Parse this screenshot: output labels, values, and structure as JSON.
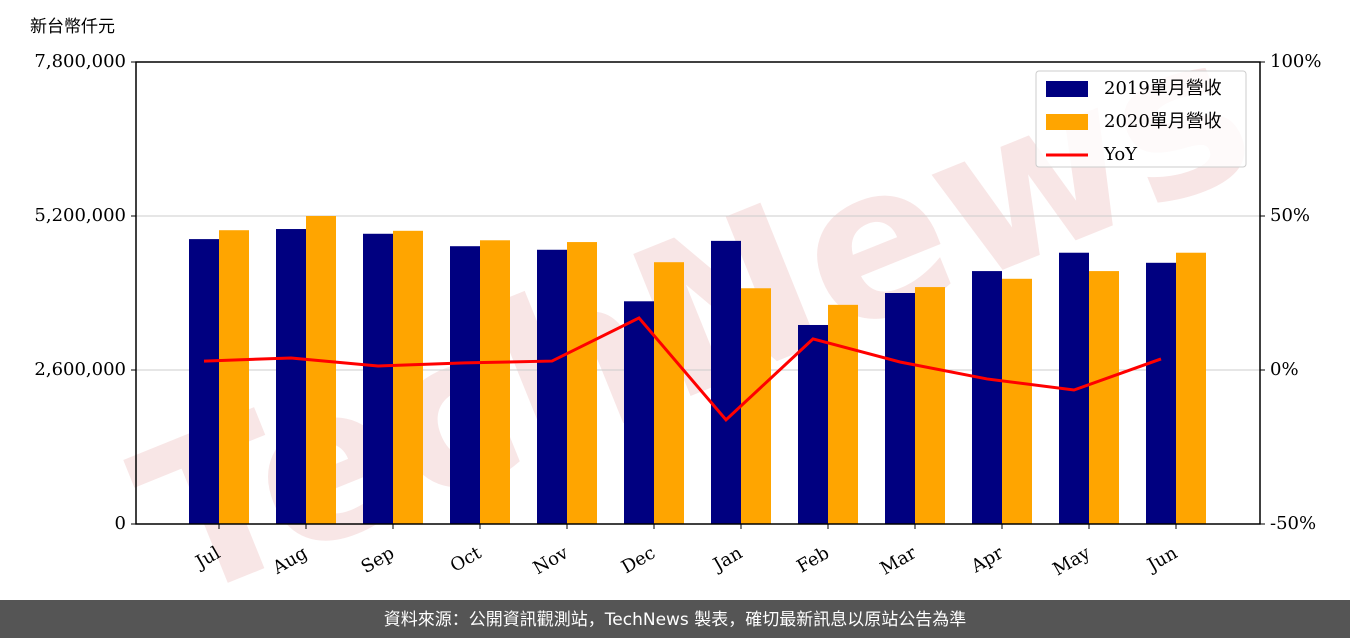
{
  "chart_data": {
    "type": "bar",
    "unit_label": "新台幣仟元",
    "watermark": "TechNews",
    "source": "資料來源：公開資訊觀測站，TechNews 製表，確切最新訊息以原站公告為準",
    "categories": [
      "Jul",
      "Aug",
      "Sep",
      "Oct",
      "Nov",
      "Dec",
      "Jan",
      "Feb",
      "Mar",
      "Apr",
      "May",
      "Jun"
    ],
    "series": [
      {
        "name": "2019單月營收",
        "color": "#000080",
        "values": [
          4810000,
          4980000,
          4900000,
          4690000,
          4630000,
          3760000,
          4780000,
          3360000,
          3900000,
          4270000,
          4580000,
          4410000
        ]
      },
      {
        "name": "2020單月營收",
        "color": "#ffa500",
        "values": [
          4960000,
          5200000,
          4950000,
          4790000,
          4760000,
          4420000,
          3980000,
          3700000,
          4000000,
          4140000,
          4270000,
          4580000
        ]
      },
      {
        "name": "YoY",
        "type": "line",
        "axis": "y2",
        "color": "#ff0000",
        "values": [
          2.9,
          3.9,
          1.3,
          2.3,
          2.9,
          16.9,
          -16.2,
          10.1,
          2.6,
          -2.9,
          -6.5,
          3.6
        ]
      }
    ],
    "ylim": [
      0,
      7800000
    ],
    "yticks": [
      {
        "value": 0,
        "label": "0"
      },
      {
        "value": 2600000,
        "label": "2,600,000"
      },
      {
        "value": 5200000,
        "label": "5,200,000"
      },
      {
        "value": 7800000,
        "label": "7,800,000"
      }
    ],
    "y2lim": [
      -50,
      100
    ],
    "y2ticks": [
      {
        "value": -50,
        "label": "-50%"
      },
      {
        "value": 0,
        "label": "0%"
      },
      {
        "value": 50,
        "label": "50%"
      },
      {
        "value": 100,
        "label": "100%"
      }
    ],
    "grid": true,
    "legend": "upper right"
  }
}
